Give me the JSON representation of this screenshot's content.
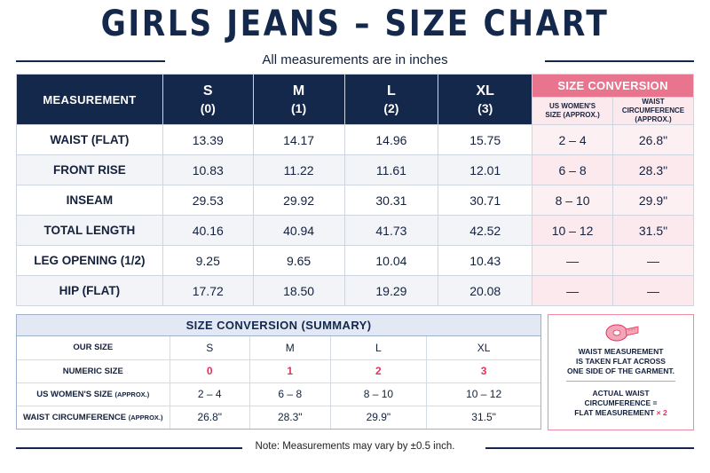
{
  "title": "GIRLS JEANS – SIZE CHART",
  "subtitle": "All measurements are in inches",
  "main_table": {
    "measurement_header": "MEASUREMENT",
    "sizes": [
      {
        "letter": "S",
        "num": "(0)"
      },
      {
        "letter": "M",
        "num": "(1)"
      },
      {
        "letter": "L",
        "num": "(2)"
      },
      {
        "letter": "XL",
        "num": "(3)"
      }
    ],
    "conversion_header": "SIZE CONVERSION",
    "conversion_cols": [
      "US WOMEN'S SIZE (APPROX.)",
      "WAIST CIRCUMFERENCE (APPROX.)"
    ],
    "conversion_col1_lines": [
      "US WOMEN'S",
      "SIZE (APPROX.)"
    ],
    "conversion_col2_lines": [
      "WAIST",
      "CIRCUMFERENCE",
      "(APPROX.)"
    ],
    "rows": [
      {
        "label": "WAIST (FLAT)",
        "values": [
          "13.39",
          "14.17",
          "14.96",
          "15.75"
        ],
        "us": "2 – 4",
        "waist": "26.8\""
      },
      {
        "label": "FRONT RISE",
        "values": [
          "10.83",
          "11.22",
          "11.61",
          "12.01"
        ],
        "us": "6 – 8",
        "waist": "28.3\""
      },
      {
        "label": "INSEAM",
        "values": [
          "29.53",
          "29.92",
          "30.31",
          "30.71"
        ],
        "us": "8 – 10",
        "waist": "29.9\""
      },
      {
        "label": "TOTAL LENGTH",
        "values": [
          "40.16",
          "40.94",
          "41.73",
          "42.52"
        ],
        "us": "10 – 12",
        "waist": "31.5\""
      },
      {
        "label": "LEG OPENING (1/2)",
        "values": [
          "9.25",
          "9.65",
          "10.04",
          "10.43"
        ],
        "us": "—",
        "waist": "—"
      },
      {
        "label": "HIP (FLAT)",
        "values": [
          "17.72",
          "18.50",
          "19.29",
          "20.08"
        ],
        "us": "—",
        "waist": "—"
      }
    ]
  },
  "summary": {
    "header": "SIZE CONVERSION (SUMMARY)",
    "rows": [
      {
        "label": "OUR SIZE",
        "label_suffix": "",
        "values": [
          "S",
          "M",
          "L",
          "XL"
        ]
      },
      {
        "label": "NUMERIC SIZE",
        "label_suffix": "",
        "values": [
          "0",
          "1",
          "2",
          "3"
        ]
      },
      {
        "label": "US WOMEN'S SIZE",
        "label_suffix": "(APPROX.)",
        "values": [
          "2 – 4",
          "6 – 8",
          "8 – 10",
          "10 – 12"
        ]
      },
      {
        "label": "WAIST CIRCUMFERENCE",
        "label_suffix": "(APPROX.)",
        "values": [
          "26.8\"",
          "28.3\"",
          "29.9\"",
          "31.5\""
        ]
      }
    ]
  },
  "note_box": {
    "lines1": [
      "WAIST MEASUREMENT",
      "IS TAKEN FLAT ACROSS",
      "ONE SIDE OF THE GARMENT."
    ],
    "lines2": [
      "ACTUAL WAIST",
      "CIRCUMFERENCE =",
      "FLAT MEASUREMENT"
    ],
    "multiplier": "× 2"
  },
  "footer": "Note: Measurements may vary by ±0.5 inch.",
  "colors": {
    "navy": "#14284b",
    "pink": "#e8748e",
    "accent_red": "#e0335a"
  },
  "icons": [
    "measuring-tape-icon"
  ]
}
